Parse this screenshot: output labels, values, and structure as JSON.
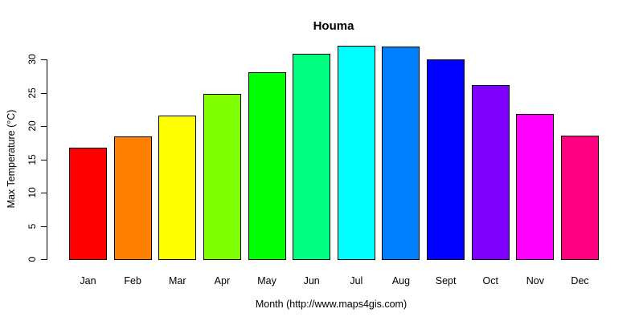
{
  "title": "Houma",
  "chart_data": {
    "type": "bar",
    "title": "Houma",
    "xlabel": "Month (http://www.maps4gis.com)",
    "ylabel": "Max Temperature (°C)",
    "categories": [
      "Jan",
      "Feb",
      "Mar",
      "Apr",
      "May",
      "Jun",
      "Jul",
      "Aug",
      "Sept",
      "Oct",
      "Nov",
      "Dec"
    ],
    "values": [
      16.7,
      18.4,
      21.6,
      24.8,
      28.1,
      30.8,
      32.0,
      31.9,
      30.0,
      26.2,
      21.8,
      18.6
    ],
    "bar_colors": [
      "#FF0000",
      "#FF8000",
      "#FFFF00",
      "#80FF00",
      "#00FF00",
      "#00FF80",
      "#00FFFF",
      "#0080FF",
      "#0000FF",
      "#8000FF",
      "#FF00FF",
      "#FF0080"
    ],
    "bar_border_color": "#000000",
    "ylim": [
      0,
      30
    ],
    "yticks": [
      0,
      5,
      10,
      15,
      20,
      25,
      30
    ],
    "grid": false,
    "legend_position": "none"
  }
}
